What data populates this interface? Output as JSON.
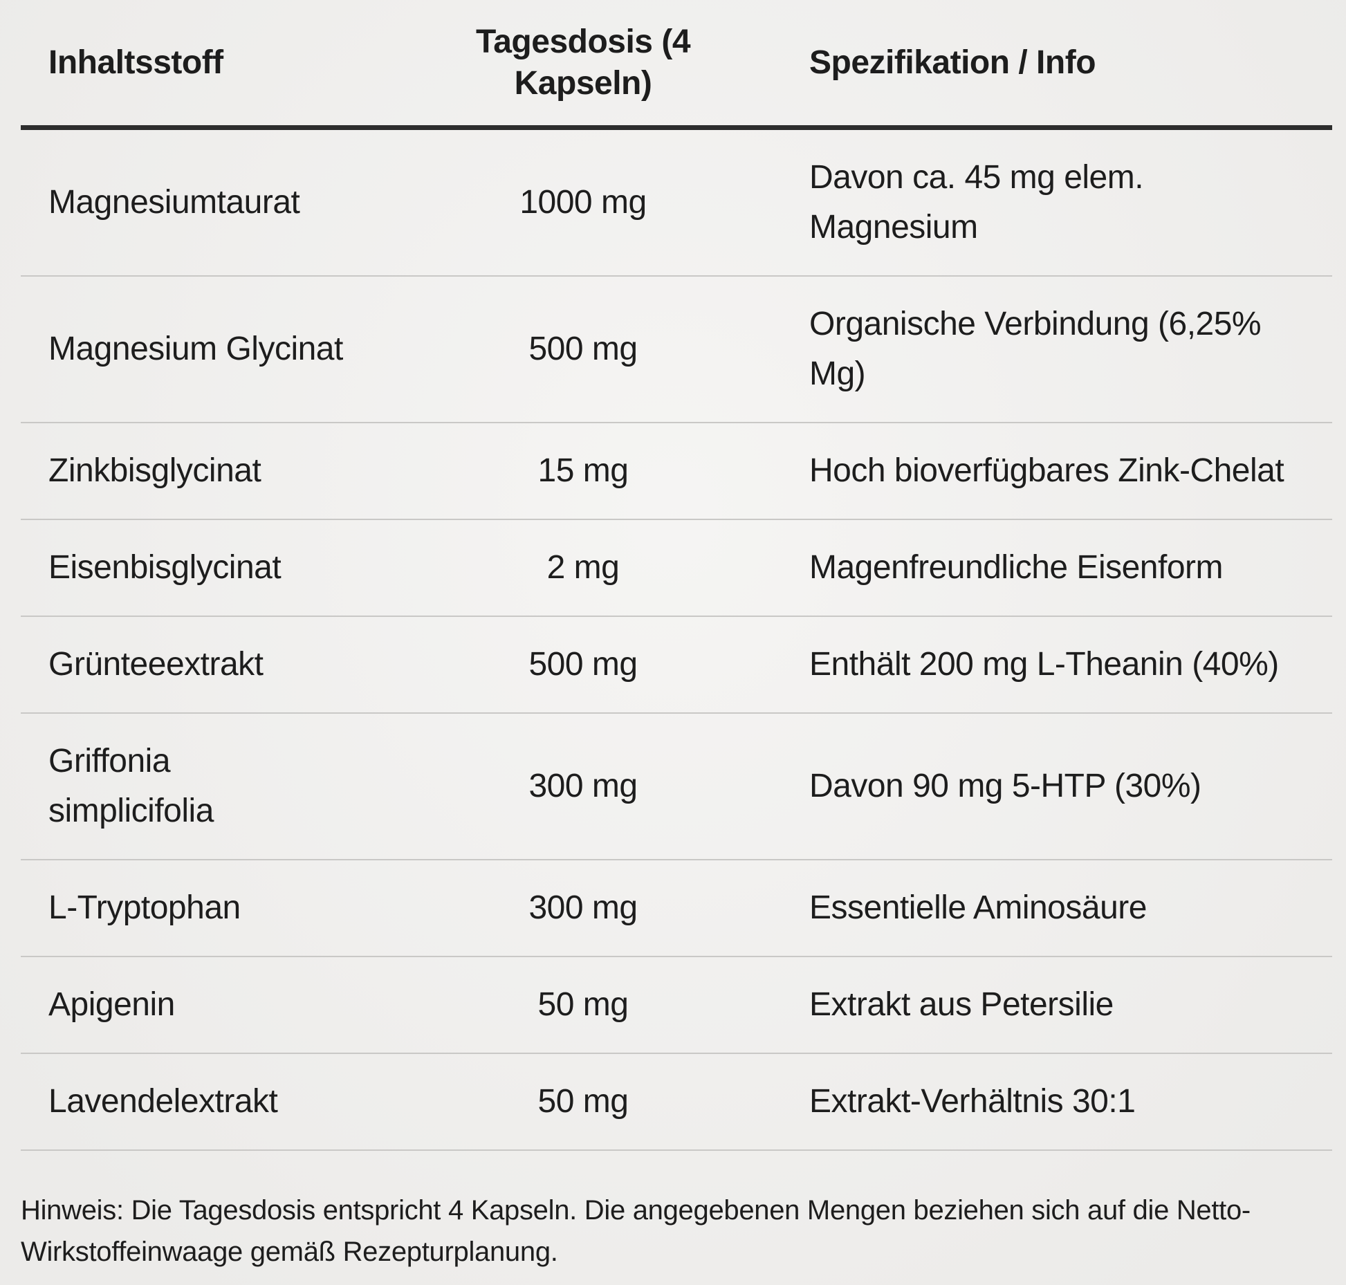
{
  "table": {
    "headers": {
      "ingredient": "Inhaltsstoff",
      "dose": "Tagesdosis (4\nKapseln)",
      "info": "Spezifikation / Info"
    },
    "rows": [
      {
        "ingredient": "Magnesiumtaurat",
        "dose": "1000 mg",
        "info": "Davon ca. 45 mg elem.\nMagnesium"
      },
      {
        "ingredient": "Magnesium Glycinat",
        "dose": "500 mg",
        "info": "Organische Verbindung (6,25%\nMg)"
      },
      {
        "ingredient": "Zinkbisglycinat",
        "dose": "15 mg",
        "info": "Hoch bioverfügbares Zink-Chelat"
      },
      {
        "ingredient": "Eisenbisglycinat",
        "dose": "2 mg",
        "info": "Magenfreundliche Eisenform"
      },
      {
        "ingredient": "Grünteeextrakt",
        "dose": "500 mg",
        "info": "Enthält 200 mg L-Theanin (40%)"
      },
      {
        "ingredient": "Griffonia\nsimplicifolia",
        "dose": "300 mg",
        "info": "Davon 90 mg 5-HTP (30%)"
      },
      {
        "ingredient": "L-Tryptophan",
        "dose": "300 mg",
        "info": "Essentielle Aminosäure"
      },
      {
        "ingredient": "Apigenin",
        "dose": "50 mg",
        "info": "Extrakt aus Petersilie"
      },
      {
        "ingredient": "Lavendelextrakt",
        "dose": "50 mg",
        "info": "Extrakt-Verhältnis 30:1"
      }
    ],
    "footnote": "Hinweis: Die Tagesdosis entspricht 4 Kapseln. Die angegebenen Mengen beziehen sich auf die Netto-\nWirkstoffeinwaage gemäß Rezepturplanung."
  },
  "colors": {
    "background": "#f0efed",
    "text": "#1d1d1d",
    "header_rule": "#2d2d2d",
    "row_rule": "#c9c8c6"
  }
}
